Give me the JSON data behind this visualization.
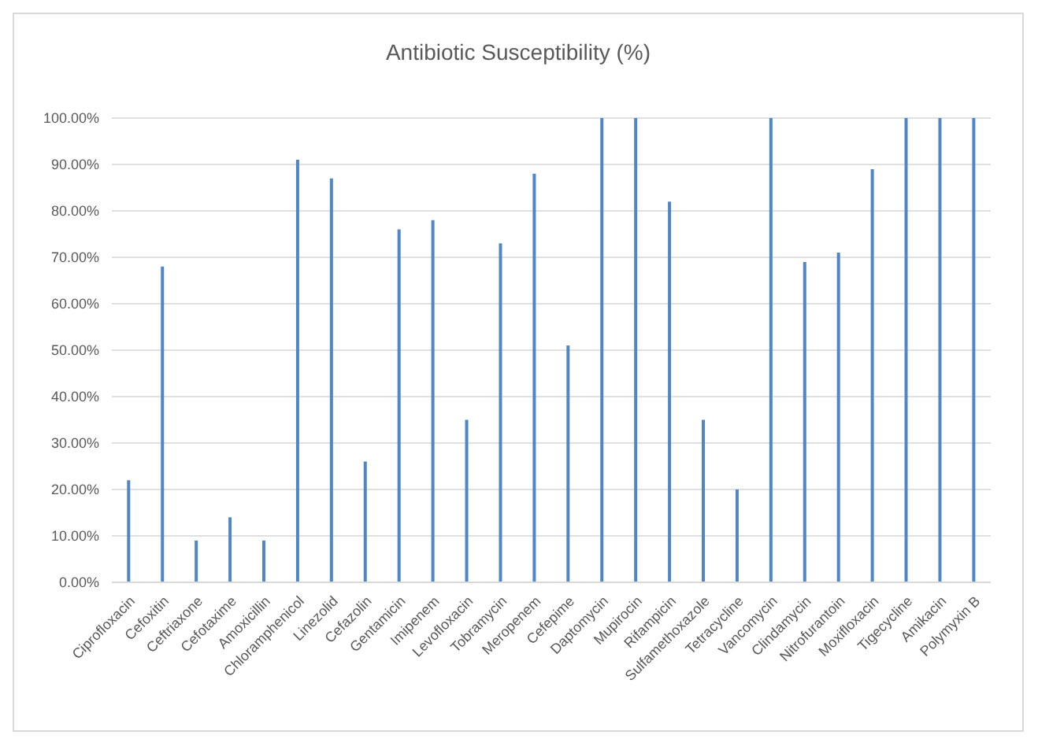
{
  "chart_data": {
    "type": "bar",
    "title": "Antibiotic Susceptibility (%)",
    "categories": [
      "Ciprofloxacin",
      "Cefoxitin",
      "Ceftriaxone",
      "Cefotaxime",
      "Amoxicillin",
      "Chloramphenicol",
      "Linezolid",
      "Cefazolin",
      "Gentamicin",
      "Imipenem",
      "Levofloxacin",
      "Tobramycin",
      "Meropenem",
      "Cefepime",
      "Daptomycin",
      "Mupirocin",
      "Rifampicin",
      "Sulfamethoxazole",
      "Tetracycline",
      "Vancomycin",
      "Clindamycin",
      "Nitrofurantoin",
      "Moxifloxacin",
      "Tigecycline",
      "Amikacin",
      "Polymyxin B"
    ],
    "values": [
      22,
      68,
      9,
      14,
      9,
      91,
      87,
      26,
      76,
      78,
      35,
      73,
      88,
      51,
      100,
      100,
      82,
      35,
      20,
      100,
      69,
      71,
      89,
      100,
      100,
      100
    ],
    "color": "#4f86c6",
    "ylim": [
      0,
      100
    ],
    "yticks": [
      {
        "value": 0,
        "label": "0.00%"
      },
      {
        "value": 10,
        "label": "10.00%"
      },
      {
        "value": 20,
        "label": "20.00%"
      },
      {
        "value": 30,
        "label": "30.00%"
      },
      {
        "value": 40,
        "label": "40.00%"
      },
      {
        "value": 50,
        "label": "50.00%"
      },
      {
        "value": 60,
        "label": "60.00%"
      },
      {
        "value": 70,
        "label": "70.00%"
      },
      {
        "value": 80,
        "label": "80.00%"
      },
      {
        "value": 90,
        "label": "90.00%"
      },
      {
        "value": 100,
        "label": "100.00%"
      }
    ],
    "grid": "y"
  }
}
